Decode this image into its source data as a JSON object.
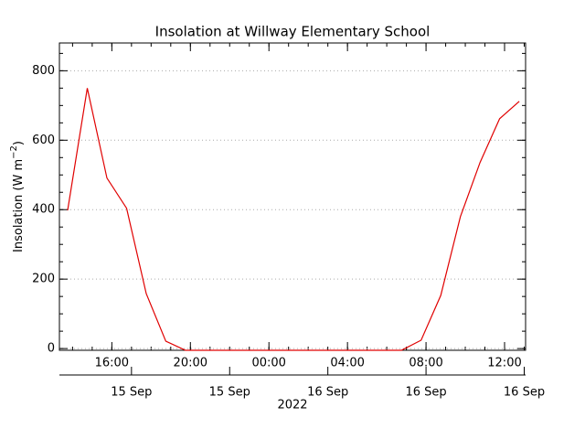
{
  "chart_data": {
    "type": "line",
    "title": "Insolation at Willway Elementary School",
    "y_label": {
      "text": "Insolation (W m",
      "superscript": "−2",
      "suffix": ")"
    },
    "x_label": "2022",
    "x": [
      13.75,
      14.75,
      15.75,
      16.75,
      17.75,
      18.75,
      19.75,
      20.75,
      21.75,
      22.75,
      23.75,
      24.75,
      25.75,
      26.75,
      27.75,
      28.75,
      29.75,
      30.75,
      31.75,
      32.75,
      33.75,
      34.75,
      35.75,
      36.75
    ],
    "series": [
      {
        "name": "Insolation",
        "color": "#e00000",
        "values": [
          398,
          750,
          491,
          404,
          158,
          21,
          -5,
          -5,
          -5,
          -5,
          -5,
          -5,
          -5,
          -5,
          -5,
          -5,
          -5,
          -5,
          24,
          153,
          380,
          536,
          662,
          712
        ]
      }
    ],
    "xlim": [
      13.33,
      37.07
    ],
    "xticks": [
      {
        "value": 16,
        "label": "16:00"
      },
      {
        "value": 20,
        "label": "20:00"
      },
      {
        "value": 24,
        "label": "00:00"
      },
      {
        "value": 28,
        "label": "04:00"
      },
      {
        "value": 32,
        "label": "08:00"
      },
      {
        "value": 36,
        "label": "12:00"
      }
    ],
    "xticks_dates": [
      {
        "value": 17,
        "label": "15 Sep"
      },
      {
        "value": 22,
        "label": "15 Sep"
      },
      {
        "value": 27,
        "label": "16 Sep"
      },
      {
        "value": 32,
        "label": "16 Sep"
      },
      {
        "value": 37,
        "label": "16 Sep"
      }
    ],
    "ylim": [
      -5,
      880
    ],
    "yticks": [
      0,
      200,
      400,
      600,
      800
    ],
    "grid": true
  }
}
